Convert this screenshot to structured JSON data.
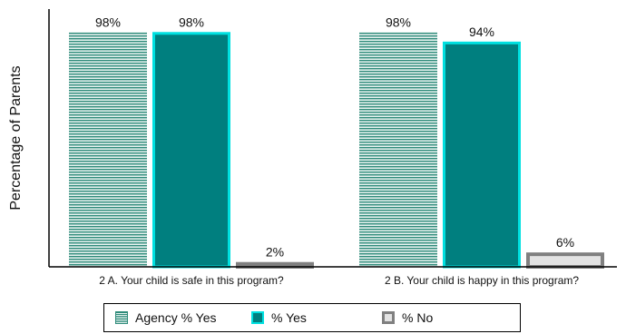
{
  "chart_data": {
    "type": "bar",
    "ylabel": "Percentage of Parents",
    "xlabel": "",
    "ylim": [
      0,
      100
    ],
    "categories": [
      "2 A. Your child is safe in this program?",
      "2 B. Your child is happy in this program?"
    ],
    "series": [
      {
        "name": "Agency % Yes",
        "values": [
          98,
          98
        ],
        "labels": [
          "98%",
          "98%"
        ]
      },
      {
        "name": "% Yes",
        "values": [
          98,
          94
        ],
        "labels": [
          "98%",
          "94%"
        ]
      },
      {
        "name": "% No",
        "values": [
          2,
          6
        ],
        "labels": [
          "2%",
          "6%"
        ]
      }
    ],
    "legend_position": "bottom",
    "grid": false,
    "colors": {
      "agency_fill": "#e6f2ef",
      "agency_stripe": "#2e8b7a",
      "yes_fill": "#007f7f",
      "yes_border": "#00e0e0",
      "no_fill": "#e3e3e3",
      "no_border": "#808080",
      "axis": "#000000"
    }
  }
}
